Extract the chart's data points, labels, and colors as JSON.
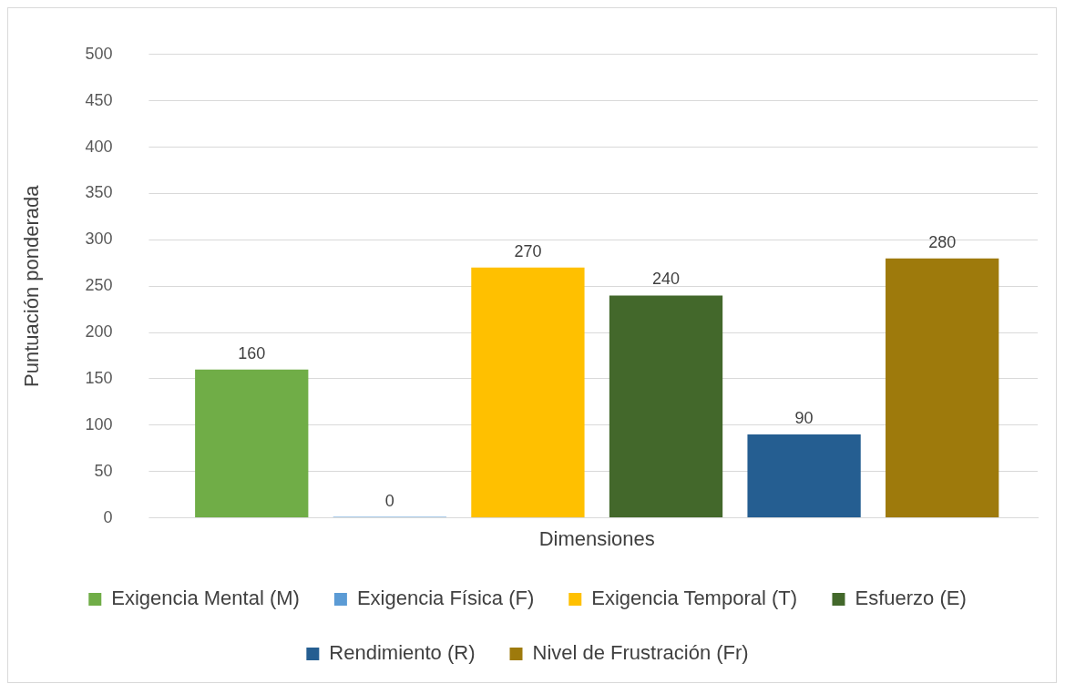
{
  "chart_data": {
    "type": "bar",
    "ylabel": "Puntuación ponderada",
    "categories": [
      "Dimensiones"
    ],
    "series": [
      {
        "name": "Exigencia Mental (M)",
        "color": "#70ad47",
        "values": [
          160
        ]
      },
      {
        "name": "Exigencia Física (F)",
        "color": "#5b9bd5",
        "values": [
          0
        ]
      },
      {
        "name": "Exigencia Temporal (T)",
        "color": "#ffc000",
        "values": [
          270
        ]
      },
      {
        "name": "Esfuerzo (E)",
        "color": "#43682b",
        "values": [
          240
        ]
      },
      {
        "name": "Rendimiento (R)",
        "color": "#255e91",
        "values": [
          90
        ]
      },
      {
        "name": "Nivel de Frustración (Fr)",
        "color": "#9e7a0c",
        "values": [
          280
        ]
      }
    ],
    "ylim": [
      0,
      500
    ],
    "yticks": [
      0,
      50,
      100,
      150,
      200,
      250,
      300,
      350,
      400,
      450,
      500
    ],
    "grid": "y",
    "legend": "bottom",
    "data_labels": true
  }
}
